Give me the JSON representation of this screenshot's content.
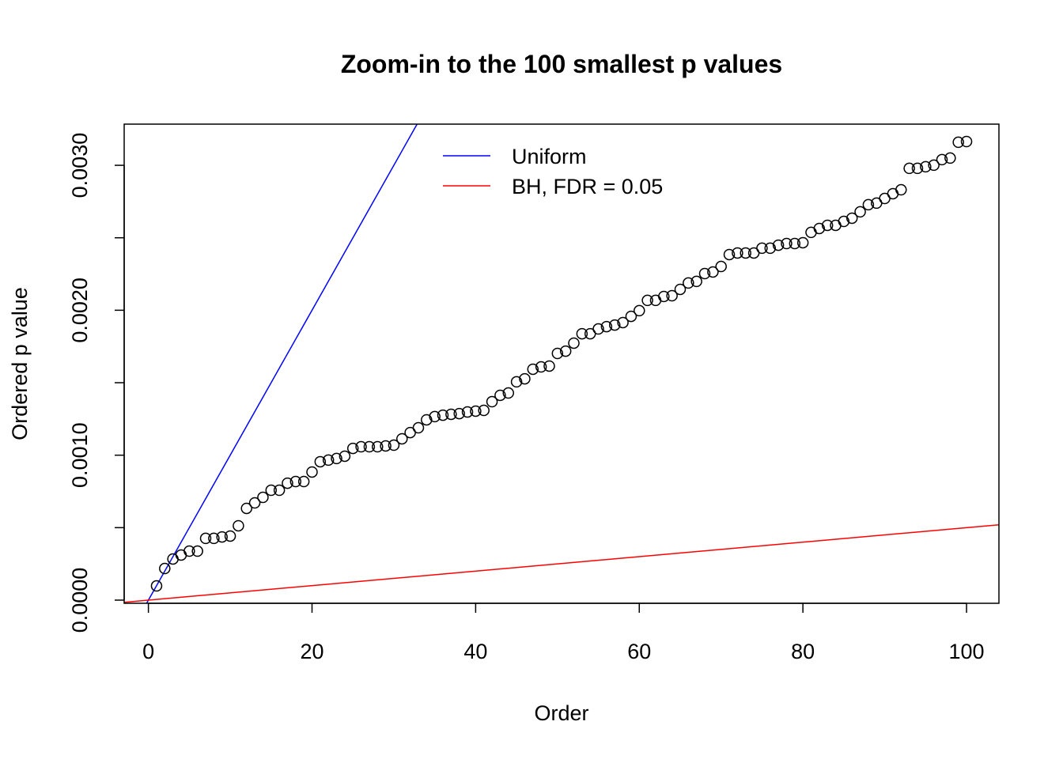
{
  "chart_data": {
    "type": "scatter",
    "title": "Zoom-in to the 100 smallest p values",
    "xlabel": "Order",
    "ylabel": "Ordered p value",
    "xlim": [
      -2.96,
      103.96
    ],
    "ylim": [
      -2.18e-05,
      0.003284
    ],
    "xticks": [
      0,
      20,
      40,
      60,
      80,
      100
    ],
    "xtick_labels": [
      "0",
      "20",
      "40",
      "60",
      "80",
      "100"
    ],
    "yticks": [
      0,
      0.0005,
      0.001,
      0.0015,
      0.002,
      0.0025,
      0.003
    ],
    "ytick_labels": [
      "0.0000",
      "",
      "0.0010",
      "",
      "0.0020",
      "",
      "0.0030"
    ],
    "grid": false,
    "legend": {
      "placement": "top-center",
      "entries": [
        {
          "label": "Uniform",
          "color": "#0000ff"
        },
        {
          "label": "BH, FDR = 0.05",
          "color": "#ff0000"
        }
      ]
    },
    "lines": [
      {
        "name": "Uniform",
        "intercept": 0,
        "slope": 0.0001,
        "color": "#0000ff"
      },
      {
        "name": "BH, FDR = 0.05",
        "intercept": 0,
        "slope": 5e-06,
        "color": "#ff0000"
      }
    ],
    "points": {
      "x_start": 1,
      "y": [
        9.8e-05,
        0.000218,
        0.000284,
        0.000311,
        0.000338,
        0.000338,
        0.000426,
        0.000426,
        0.000436,
        0.000442,
        0.000513,
        0.000633,
        0.000671,
        0.000709,
        0.000758,
        0.000758,
        0.000807,
        0.000818,
        0.000818,
        0.000884,
        0.000955,
        0.000966,
        0.000977,
        0.000993,
        0.001047,
        0.001058,
        0.001058,
        0.001058,
        0.001064,
        0.001069,
        0.001113,
        0.001156,
        0.001189,
        0.001244,
        0.001266,
        0.001276,
        0.001282,
        0.001287,
        0.001298,
        0.001304,
        0.001309,
        0.001369,
        0.001413,
        0.001429,
        0.001506,
        0.001527,
        0.001593,
        0.001609,
        0.001615,
        0.001702,
        0.001718,
        0.001773,
        0.001838,
        0.001838,
        0.001871,
        0.001887,
        0.001898,
        0.001915,
        0.001958,
        0.001997,
        0.002068,
        0.002068,
        0.002095,
        0.0021,
        0.002144,
        0.002188,
        0.002199,
        0.002253,
        0.002264,
        0.002302,
        0.002384,
        0.002395,
        0.002395,
        0.002395,
        0.002428,
        0.002428,
        0.002449,
        0.00246,
        0.00246,
        0.002466,
        0.002537,
        0.002564,
        0.002586,
        0.002586,
        0.002613,
        0.002635,
        0.002679,
        0.002728,
        0.002739,
        0.002771,
        0.002804,
        0.002831,
        0.002979,
        0.002979,
        0.00299,
        0.003001,
        0.003039,
        0.00305,
        0.003159,
        0.003164
      ]
    }
  }
}
